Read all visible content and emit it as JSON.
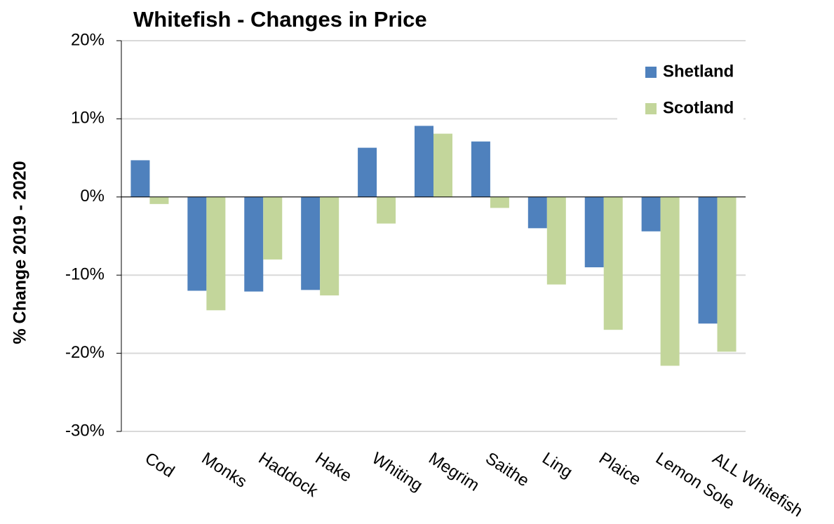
{
  "chart_data": {
    "type": "bar",
    "title": "Whitefish - Changes in Price",
    "y_label": "% Change  2019 - 2020",
    "categories": [
      "Cod",
      "Monks",
      "Haddock",
      "Hake",
      "Whiting",
      "Megrim",
      "Saithe",
      "Ling",
      "Plaice",
      "Lemon Sole",
      "ALL Whitefish"
    ],
    "series": [
      {
        "name": "Shetland",
        "color": "#4f81bd",
        "values": [
          4.7,
          -12.0,
          -12.1,
          -11.9,
          6.3,
          9.1,
          7.1,
          -4.0,
          -9.0,
          -4.4,
          -16.2
        ]
      },
      {
        "name": "Scotland",
        "color": "#c3d69b",
        "values": [
          -0.9,
          -14.5,
          -8.0,
          -12.6,
          -3.4,
          8.1,
          -1.4,
          -11.2,
          -17.0,
          -21.6,
          -19.8
        ]
      }
    ],
    "ylim": [
      -30,
      20
    ],
    "yticks": [
      {
        "value": -30,
        "label": "-30%"
      },
      {
        "value": -20,
        "label": "-20%"
      },
      {
        "value": -10,
        "label": "-10%"
      },
      {
        "value": 0,
        "label": "0%"
      },
      {
        "value": 10,
        "label": "10%"
      },
      {
        "value": 20,
        "label": "20%"
      }
    ],
    "grid": true,
    "legend": "top-right"
  }
}
